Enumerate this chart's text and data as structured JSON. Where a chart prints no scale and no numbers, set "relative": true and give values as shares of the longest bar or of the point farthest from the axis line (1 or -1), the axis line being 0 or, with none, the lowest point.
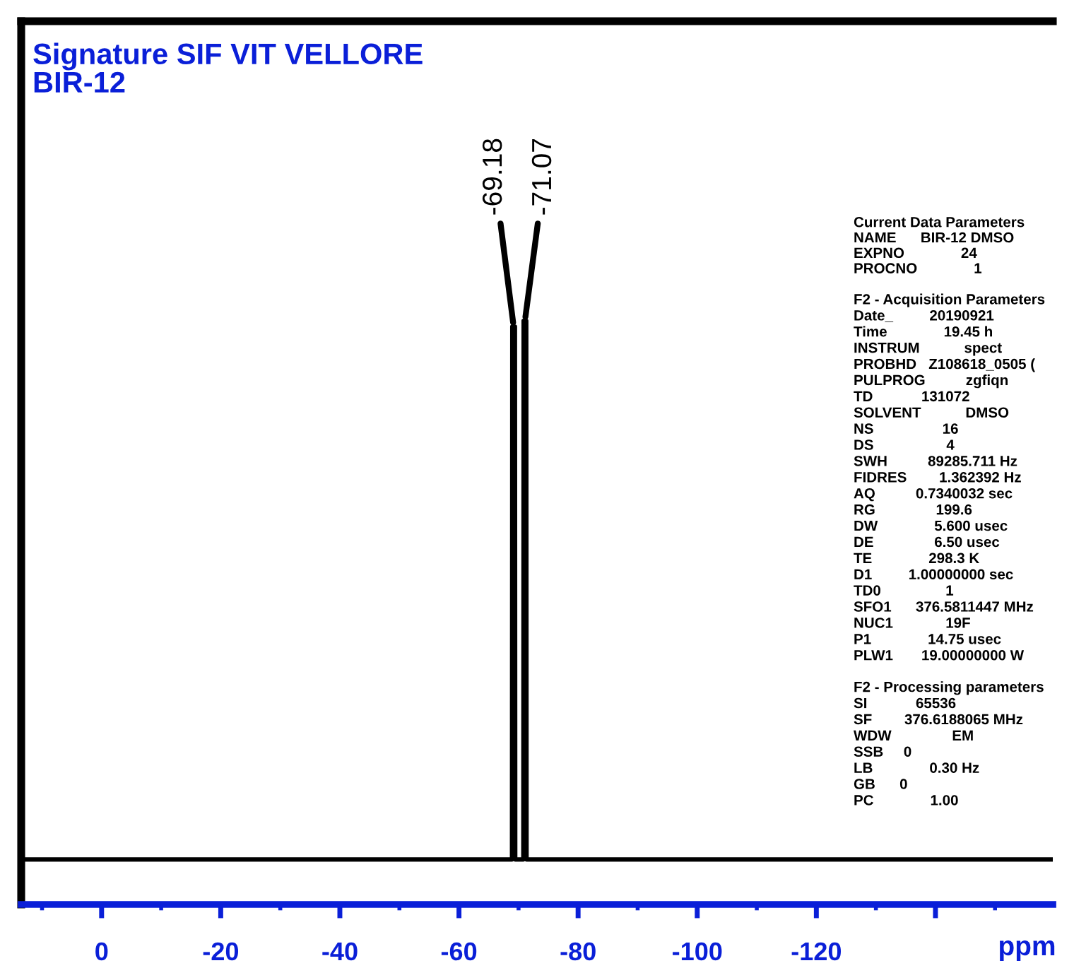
{
  "chart_data": {
    "type": "line",
    "title": "Signature SIF VIT VELLORE",
    "subtitle": "BIR-12",
    "xlabel": "ppm",
    "relative": true,
    "series": [
      {
        "color": "#000000",
        "x": [
          13.5,
          -68.9,
          -68.95,
          -69.18,
          -69.4,
          -69.45,
          -70.8,
          -70.85,
          -71.07,
          -71.3,
          -71.35,
          -159.7
        ],
        "values": [
          0.077,
          0.077,
          0.99,
          0.99,
          0.99,
          0.077,
          0.077,
          1,
          1,
          1,
          0.077,
          0.077
        ]
      }
    ],
    "xlim": [
      13.5,
      -159.7
    ],
    "xticks": [
      0,
      -20,
      -40,
      -60,
      -80,
      -100,
      -120,
      {
        "value": -140,
        "label": null
      }
    ],
    "tick_labels": "x",
    "grid": false,
    "legend": false,
    "marker": "none",
    "line_style": "solid",
    "annotations": [
      {
        "text": "-69.18",
        "x": -69.18,
        "y": 0.99
      },
      {
        "text": "-71.07",
        "x": -71.07,
        "y": 1
      },
      "Current Data Parameters",
      "NAME      BIR-12 DMSO",
      "EXPNO              24",
      "PROCNO              1",
      "F2 - Acquisition Parameters",
      "Date_         20190921",
      "Time              19.45 h",
      "INSTRUM           spect",
      "PROBHD   Z108618_0505 (",
      "PULPROG          zgfiqn",
      "TD            131072",
      "SOLVENT           DMSO",
      "NS                 16",
      "DS                  4",
      "SWH          89285.711 Hz",
      "FIDRES        1.362392 Hz",
      "AQ          0.7340032 sec",
      "RG               199.6",
      "DW              5.600 usec",
      "DE               6.50 usec",
      "TE              298.3 K",
      "D1         1.00000000 sec",
      "TD0                1",
      "SFO1      376.5811447 MHz",
      "NUC1             19F",
      "P1              14.75 usec",
      "PLW1       19.00000000 W",
      "F2 - Processing parameters",
      "SI            65536",
      "SF        376.6188065 MHz",
      "WDW               EM",
      "SSB     0",
      "LB              0.30 Hz",
      "GB      0",
      "PC              1.00"
    ]
  }
}
